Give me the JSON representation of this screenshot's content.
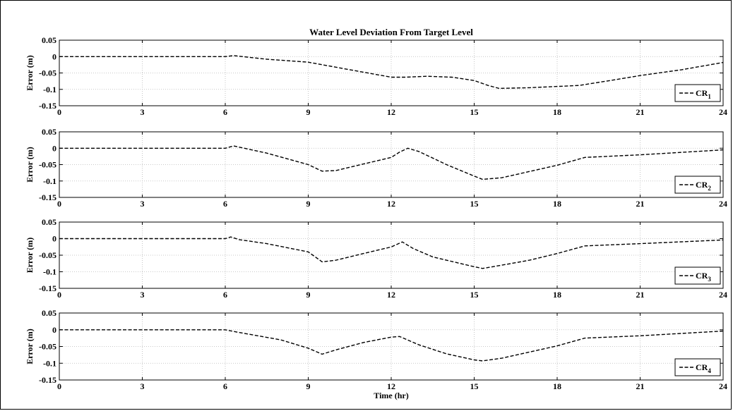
{
  "chart_data": [
    {
      "type": "line",
      "title": "Water Level Deviation From Target Level",
      "ylabel": "Error (m)",
      "xlabel": "",
      "xlim": [
        0,
        24
      ],
      "ylim": [
        -0.15,
        0.05
      ],
      "xticks": [
        "0",
        "3",
        "6",
        "9",
        "12",
        "15",
        "18",
        "21",
        "24"
      ],
      "yticks": [
        "0.05",
        "0",
        "-0.05",
        "-0.1",
        "-0.15"
      ],
      "grid": true,
      "legend_position": "bottom-right",
      "series": [
        {
          "name_base": "CR",
          "name_sub": "1",
          "x": [
            0,
            6.0,
            6.3,
            7.5,
            9.0,
            10.5,
            12.0,
            12.5,
            13.3,
            14.2,
            15.0,
            15.5,
            15.9,
            17.0,
            18.8,
            20.0,
            21.0,
            22.5,
            24.0
          ],
          "y": [
            0,
            0,
            0.003,
            -0.008,
            -0.017,
            -0.04,
            -0.063,
            -0.063,
            -0.06,
            -0.063,
            -0.073,
            -0.088,
            -0.097,
            -0.095,
            -0.088,
            -0.072,
            -0.058,
            -0.04,
            -0.018
          ]
        }
      ]
    },
    {
      "type": "line",
      "title": "",
      "ylabel": "Error (m)",
      "xlabel": "",
      "xlim": [
        0,
        24
      ],
      "ylim": [
        -0.15,
        0.05
      ],
      "xticks": [
        "0",
        "3",
        "6",
        "9",
        "12",
        "15",
        "18",
        "21",
        "24"
      ],
      "yticks": [
        "0.05",
        "0",
        "-0.05",
        "-0.1",
        "-0.15"
      ],
      "grid": true,
      "legend_position": "bottom-right",
      "series": [
        {
          "name_base": "CR",
          "name_sub": "2",
          "x": [
            0,
            6.0,
            6.3,
            7.5,
            9.0,
            9.5,
            10.0,
            11.0,
            12.0,
            12.3,
            12.6,
            13.0,
            14.0,
            15.0,
            15.3,
            16.0,
            18.0,
            19.0,
            21.0,
            24.0
          ],
          "y": [
            0,
            0,
            0.007,
            -0.015,
            -0.05,
            -0.07,
            -0.068,
            -0.048,
            -0.028,
            -0.012,
            0,
            -0.01,
            -0.05,
            -0.085,
            -0.095,
            -0.09,
            -0.052,
            -0.028,
            -0.02,
            -0.005
          ]
        }
      ]
    },
    {
      "type": "line",
      "title": "",
      "ylabel": "Error (m)",
      "xlabel": "",
      "xlim": [
        0,
        24
      ],
      "ylim": [
        -0.15,
        0.05
      ],
      "xticks": [
        "0",
        "3",
        "6",
        "9",
        "12",
        "15",
        "18",
        "21",
        "24"
      ],
      "yticks": [
        "0.05",
        "0",
        "-0.05",
        "-0.1",
        "-0.15"
      ],
      "grid": true,
      "legend_position": "bottom-right",
      "series": [
        {
          "name_base": "CR",
          "name_sub": "3",
          "x": [
            0,
            6.0,
            6.2,
            6.5,
            7.5,
            9.0,
            9.5,
            10.0,
            11.0,
            12.0,
            12.4,
            12.8,
            13.5,
            15.0,
            15.3,
            16.0,
            17.0,
            18.0,
            19.0,
            21.0,
            24.0
          ],
          "y": [
            0,
            0,
            0.005,
            -0.003,
            -0.015,
            -0.04,
            -0.07,
            -0.065,
            -0.045,
            -0.025,
            -0.01,
            -0.03,
            -0.055,
            -0.085,
            -0.09,
            -0.08,
            -0.065,
            -0.045,
            -0.022,
            -0.015,
            -0.004
          ]
        }
      ]
    },
    {
      "type": "line",
      "title": "",
      "ylabel": "Error (m)",
      "xlabel": "Time (hr)",
      "xlim": [
        0,
        24
      ],
      "ylim": [
        -0.15,
        0.05
      ],
      "xticks": [
        "0",
        "3",
        "6",
        "9",
        "12",
        "15",
        "18",
        "21",
        "24"
      ],
      "yticks": [
        "0.05",
        "0",
        "-0.05",
        "-0.1",
        "-0.15"
      ],
      "grid": true,
      "legend_position": "bottom-right",
      "series": [
        {
          "name_base": "CR",
          "name_sub": "4",
          "x": [
            0,
            6.0,
            6.5,
            8.0,
            9.0,
            9.5,
            10.0,
            11.0,
            12.0,
            12.3,
            13.0,
            14.0,
            15.0,
            15.3,
            16.0,
            18.0,
            19.0,
            21.0,
            24.0
          ],
          "y": [
            0,
            0,
            -0.008,
            -0.03,
            -0.055,
            -0.073,
            -0.06,
            -0.038,
            -0.022,
            -0.02,
            -0.045,
            -0.072,
            -0.09,
            -0.093,
            -0.085,
            -0.048,
            -0.025,
            -0.018,
            -0.004
          ]
        }
      ]
    }
  ]
}
